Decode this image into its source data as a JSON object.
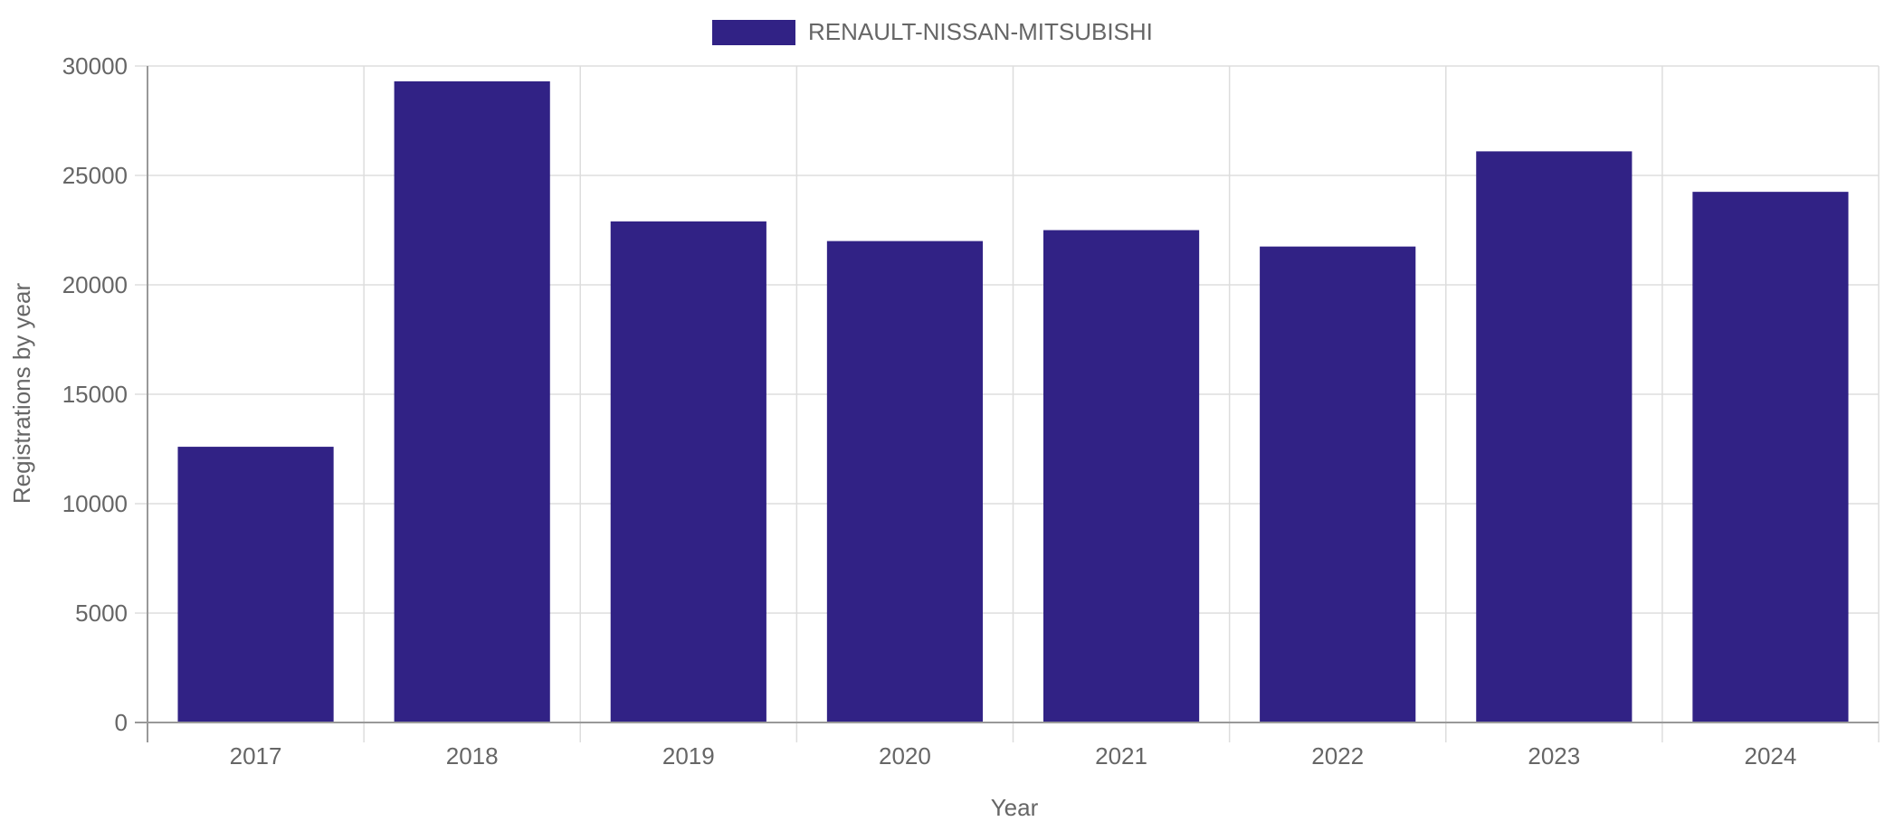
{
  "chart_data": {
    "type": "bar",
    "title": "",
    "xlabel": "Year",
    "ylabel": "Registrations by year",
    "categories": [
      "2017",
      "2018",
      "2019",
      "2020",
      "2021",
      "2022",
      "2023",
      "2024"
    ],
    "series": [
      {
        "name": "RENAULT-NISSAN-MITSUBISHI",
        "color": "#312285",
        "values": [
          12600,
          29300,
          22900,
          22000,
          22500,
          21750,
          26100,
          24250
        ]
      }
    ],
    "ylim": [
      0,
      30000
    ],
    "yticks": [
      "0",
      "5000",
      "10000",
      "15000",
      "20000",
      "25000",
      "30000"
    ],
    "grid": true,
    "legend_position": "top-center",
    "colors": {
      "bar": "#312285",
      "grid": "#dddddd",
      "axis": "#999999",
      "text": "#666666"
    }
  }
}
